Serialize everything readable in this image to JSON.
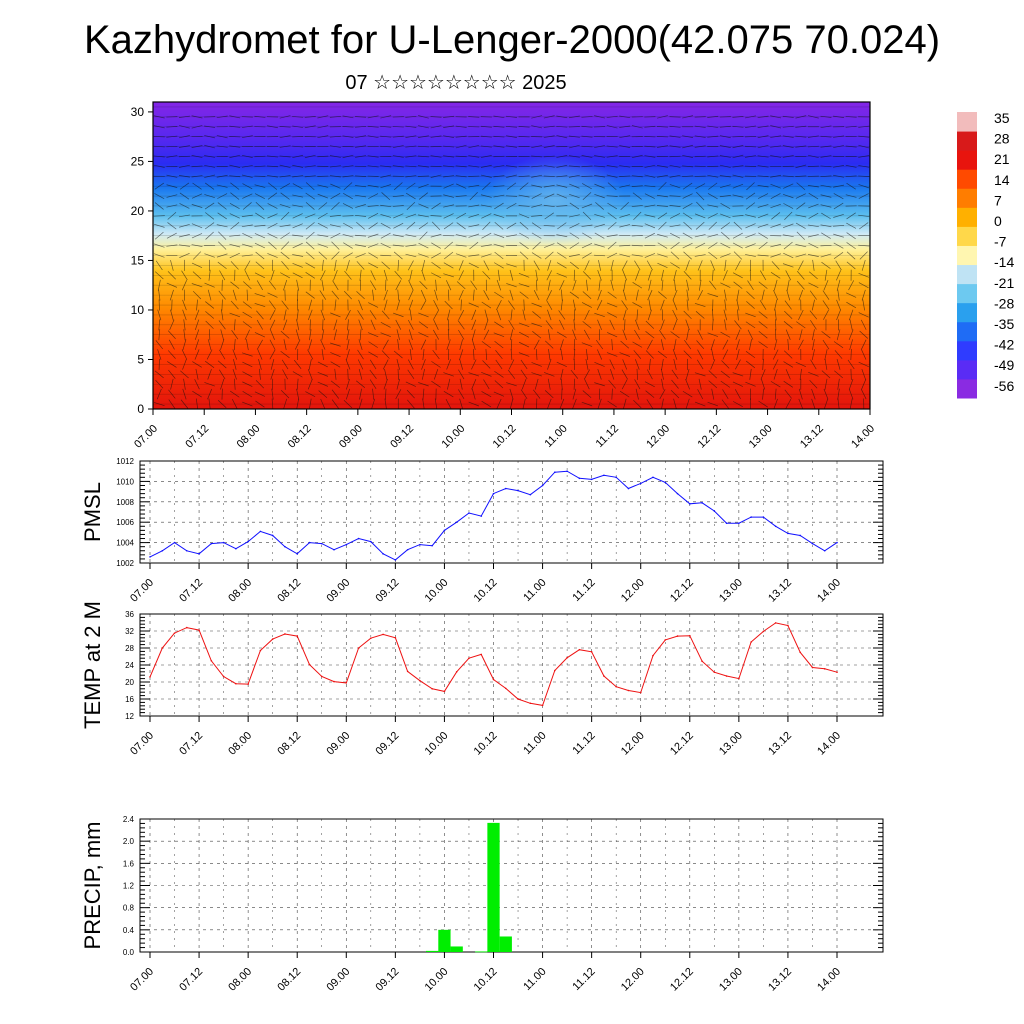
{
  "page": {
    "title": "Kazhydromet for U-Lenger-2000(42.075 70.024)",
    "subtitle": "07 ☆☆☆☆☆☆☆☆ 2025"
  },
  "colors": {
    "pmsl": "#1010ff",
    "temp": "#ee1111",
    "precip": "#00ee00",
    "grid": "#444444",
    "axis": "#000000",
    "colorbar": [
      "#8a2be2",
      "#5a2cf5",
      "#2f3cff",
      "#1f6cf5",
      "#2aa0ee",
      "#6dc9f0",
      "#bfe3f4",
      "#fff6b0",
      "#ffd84a",
      "#ffb000",
      "#ff7d00",
      "#ff4a00",
      "#e8140e",
      "#d81a1a",
      "#f2bcbc"
    ]
  },
  "chart_data": [
    {
      "id": "wind-temp-profile",
      "type": "heatmap",
      "title": "",
      "xlabel": "",
      "ylabel": "",
      "x_ticks": [
        "07.00",
        "07.12",
        "08.00",
        "08.12",
        "09.00",
        "09.12",
        "10.00",
        "10.12",
        "11.00",
        "11.12",
        "12.00",
        "12.12",
        "13.00",
        "13.12",
        "14.00"
      ],
      "y_ticks": [
        "0",
        "5",
        "10",
        "15",
        "20",
        "25",
        "30"
      ],
      "ylim": [
        0,
        31
      ],
      "colorbar_ticks": [
        "35",
        "28",
        "21",
        "14",
        "7",
        "0",
        "-7",
        "-14",
        "-21",
        "-28",
        "-35",
        "-42",
        "-49",
        "-56"
      ]
    },
    {
      "id": "pmsl",
      "type": "line",
      "title": "",
      "ylabel": "PMSL",
      "ylim": [
        1002,
        1012
      ],
      "y_ticks": [
        "1012",
        "1010",
        "1008",
        "1006",
        "1004",
        "1002"
      ],
      "x_ticks": [
        "07.00",
        "07.12",
        "08.00",
        "08.12",
        "09.00",
        "09.12",
        "10.00",
        "10.12",
        "11.00",
        "11.12",
        "12.00",
        "12.12",
        "13.00",
        "13.12",
        "14.00"
      ],
      "series": [
        {
          "values": [
            1002.6,
            1003.2,
            1004.0,
            1003.2,
            1002.9,
            1003.9,
            1004.0,
            1003.4,
            1004.1,
            1005.1,
            1004.7,
            1003.6,
            1002.9,
            1004.0,
            1003.9,
            1003.3,
            1003.8,
            1004.4,
            1004.1,
            1002.9,
            1002.3,
            1003.3,
            1003.8,
            1003.7,
            1005.2,
            1006.0,
            1006.9,
            1006.6,
            1008.8,
            1009.3,
            1009.1,
            1008.7,
            1009.6,
            1010.9,
            1011.0,
            1010.3,
            1010.2,
            1010.6,
            1010.4,
            1009.3,
            1009.8,
            1010.4,
            1009.9,
            1008.8,
            1007.8,
            1007.9,
            1007.1,
            1005.9,
            1005.9,
            1006.5,
            1006.5,
            1005.6,
            1004.9,
            1004.7,
            1003.9,
            1003.2,
            1004.0
          ]
        }
      ]
    },
    {
      "id": "temp2m",
      "type": "line",
      "title": "",
      "ylabel": "TEMP at 2 M",
      "ylim": [
        12,
        36
      ],
      "y_ticks": [
        "36",
        "32",
        "28",
        "24",
        "20",
        "16",
        "12"
      ],
      "x_ticks": [
        "07.00",
        "07.12",
        "08.00",
        "08.12",
        "09.00",
        "09.12",
        "10.00",
        "10.12",
        "11.00",
        "11.12",
        "12.00",
        "12.12",
        "13.00",
        "13.12",
        "14.00"
      ],
      "series": [
        {
          "values": [
            21.2,
            28.0,
            31.5,
            32.8,
            32.2,
            25.0,
            21.3,
            19.6,
            19.5,
            27.4,
            30.1,
            31.3,
            30.8,
            24.1,
            21.3,
            20.1,
            19.8,
            28.0,
            30.3,
            31.2,
            30.4,
            22.5,
            20.3,
            18.4,
            17.8,
            22.4,
            25.6,
            26.5,
            20.6,
            18.5,
            16.0,
            15.0,
            14.5,
            22.7,
            25.7,
            27.6,
            27.1,
            21.4,
            18.9,
            18.0,
            17.5,
            26.2,
            29.9,
            30.8,
            30.9,
            24.9,
            22.3,
            21.4,
            20.8,
            29.4,
            31.9,
            33.9,
            33.3,
            27.0,
            23.4,
            23.1,
            22.3
          ]
        }
      ]
    },
    {
      "id": "precip",
      "type": "bar",
      "title": "",
      "ylabel": "PRECIP, mm",
      "ylim": [
        0,
        2.4
      ],
      "y_ticks": [
        "2.4",
        "2.0",
        "1.6",
        "1.2",
        "0.8",
        "0.4",
        "0.0"
      ],
      "x_ticks": [
        "07.00",
        "07.12",
        "08.00",
        "08.12",
        "09.00",
        "09.12",
        "10.00",
        "10.12",
        "11.00",
        "11.12",
        "12.00",
        "12.12",
        "13.00",
        "13.12",
        "14.00"
      ],
      "bars": [
        {
          "step": 23,
          "value": 0.02
        },
        {
          "step": 24,
          "value": 0.4
        },
        {
          "step": 25,
          "value": 0.1
        },
        {
          "step": 27,
          "value": 0.01
        },
        {
          "step": 28,
          "value": 2.33
        },
        {
          "step": 29,
          "value": 0.28
        }
      ]
    }
  ]
}
